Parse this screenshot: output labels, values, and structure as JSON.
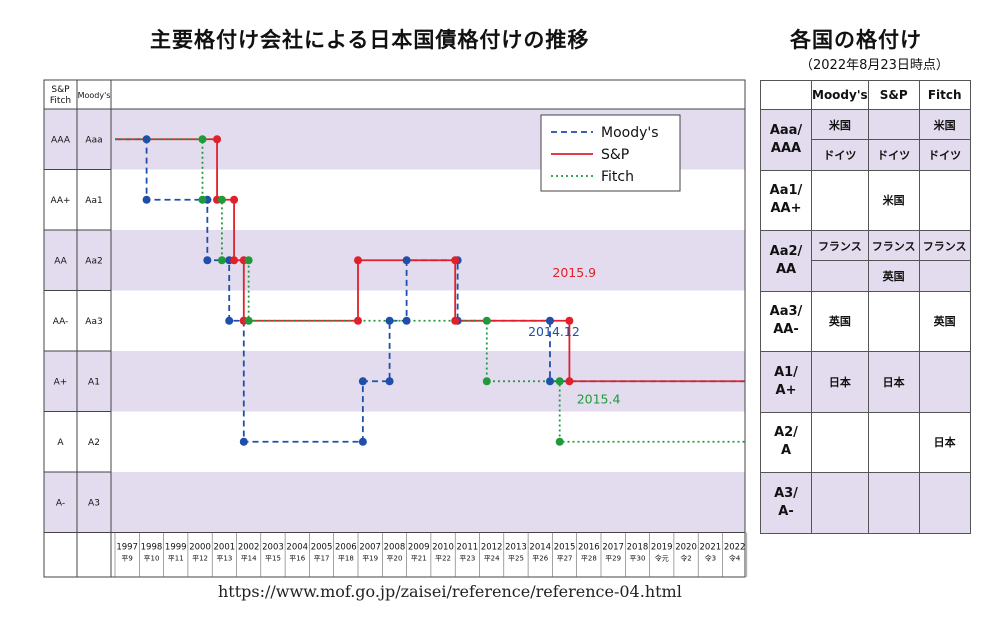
{
  "left_title": "主要格付け会社による日本国債格付けの推移",
  "right_title": "各国の格付け",
  "as_of": "（2022年8月23日時点）",
  "source_url": "https://www.mof.go.jp/zaisei/reference/reference-04.html",
  "colors": {
    "band": "#e2dcee",
    "moodys": "#1f4fa8",
    "sp": "#e0202a",
    "fitch": "#1f9a3a"
  },
  "chart_data": {
    "type": "line",
    "step": true,
    "col_headers": [
      "S&P\nFitch",
      "Moody's"
    ],
    "rating_rows": [
      {
        "sp_fitch": "AAA",
        "moodys": "Aaa"
      },
      {
        "sp_fitch": "AA+",
        "moodys": "Aa1"
      },
      {
        "sp_fitch": "AA",
        "moodys": "Aa2"
      },
      {
        "sp_fitch": "AA-",
        "moodys": "Aa3"
      },
      {
        "sp_fitch": "A+",
        "moodys": "A1"
      },
      {
        "sp_fitch": "A",
        "moodys": "A2"
      },
      {
        "sp_fitch": "A-",
        "moodys": "A3"
      }
    ],
    "years": [
      {
        "y": "1997",
        "e": "平9"
      },
      {
        "y": "1998",
        "e": "平10"
      },
      {
        "y": "1999",
        "e": "平11"
      },
      {
        "y": "2000",
        "e": "平12"
      },
      {
        "y": "2001",
        "e": "平13"
      },
      {
        "y": "2002",
        "e": "平14"
      },
      {
        "y": "2003",
        "e": "平15"
      },
      {
        "y": "2004",
        "e": "平16"
      },
      {
        "y": "2005",
        "e": "平17"
      },
      {
        "y": "2006",
        "e": "平18"
      },
      {
        "y": "2007",
        "e": "平19"
      },
      {
        "y": "2008",
        "e": "平20"
      },
      {
        "y": "2009",
        "e": "平21"
      },
      {
        "y": "2010",
        "e": "平22"
      },
      {
        "y": "2011",
        "e": "平23"
      },
      {
        "y": "2012",
        "e": "平24"
      },
      {
        "y": "2013",
        "e": "平25"
      },
      {
        "y": "2014",
        "e": "平26"
      },
      {
        "y": "2015",
        "e": "平27"
      },
      {
        "y": "2016",
        "e": "平28"
      },
      {
        "y": "2017",
        "e": "平29"
      },
      {
        "y": "2018",
        "e": "平30"
      },
      {
        "y": "2019",
        "e": "令元"
      },
      {
        "y": "2020",
        "e": "令2"
      },
      {
        "y": "2021",
        "e": "令3"
      },
      {
        "y": "2022",
        "e": "令4"
      }
    ],
    "x_range": [
      1997,
      2023
    ],
    "series": [
      {
        "name": "Moody's",
        "dash": "dashed",
        "color_key": "moodys",
        "points": [
          [
            1997.0,
            "Aaa"
          ],
          [
            1998.3,
            "Aaa"
          ],
          [
            1998.3,
            "Aa1"
          ],
          [
            2000.8,
            "Aa1"
          ],
          [
            2000.8,
            "Aa2"
          ],
          [
            2001.7,
            "Aa2"
          ],
          [
            2001.7,
            "Aa3"
          ],
          [
            2002.3,
            "Aa3"
          ],
          [
            2002.3,
            "A2"
          ],
          [
            2007.2,
            "A2"
          ],
          [
            2007.2,
            "A1"
          ],
          [
            2008.3,
            "A1"
          ],
          [
            2008.3,
            "Aa3"
          ],
          [
            2009.0,
            "Aa3"
          ],
          [
            2009.0,
            "Aa2"
          ],
          [
            2011.1,
            "Aa2"
          ],
          [
            2011.1,
            "Aa3"
          ],
          [
            2014.9,
            "Aa3"
          ],
          [
            2014.9,
            "A1"
          ],
          [
            2022.9,
            "A1"
          ]
        ],
        "dots": [
          [
            1998.3,
            "Aaa"
          ],
          [
            1998.3,
            "Aa1"
          ],
          [
            2000.8,
            "Aa1"
          ],
          [
            2000.8,
            "Aa2"
          ],
          [
            2001.7,
            "Aa2"
          ],
          [
            2001.7,
            "Aa3"
          ],
          [
            2002.3,
            "Aa3"
          ],
          [
            2002.3,
            "A2"
          ],
          [
            2007.2,
            "A2"
          ],
          [
            2007.2,
            "A1"
          ],
          [
            2008.3,
            "A1"
          ],
          [
            2008.3,
            "Aa3"
          ],
          [
            2009.0,
            "Aa3"
          ],
          [
            2009.0,
            "Aa2"
          ],
          [
            2011.1,
            "Aa2"
          ],
          [
            2011.1,
            "Aa3"
          ],
          [
            2014.9,
            "Aa3"
          ],
          [
            2014.9,
            "A1"
          ]
        ]
      },
      {
        "name": "S&P",
        "dash": "solid",
        "color_key": "sp",
        "points": [
          [
            1997.0,
            "AAA"
          ],
          [
            2001.2,
            "AAA"
          ],
          [
            2001.2,
            "AA+"
          ],
          [
            2001.9,
            "AA+"
          ],
          [
            2001.9,
            "AA"
          ],
          [
            2002.3,
            "AA"
          ],
          [
            2002.3,
            "AA-"
          ],
          [
            2007.0,
            "AA-"
          ],
          [
            2007.0,
            "AA"
          ],
          [
            2011.0,
            "AA"
          ],
          [
            2011.0,
            "AA-"
          ],
          [
            2015.7,
            "AA-"
          ],
          [
            2015.7,
            "A+"
          ],
          [
            2022.9,
            "A+"
          ]
        ],
        "dots": [
          [
            2001.2,
            "AAA"
          ],
          [
            2001.2,
            "AA+"
          ],
          [
            2001.9,
            "AA+"
          ],
          [
            2001.9,
            "AA"
          ],
          [
            2002.3,
            "AA"
          ],
          [
            2002.3,
            "AA-"
          ],
          [
            2007.0,
            "AA-"
          ],
          [
            2007.0,
            "AA"
          ],
          [
            2011.0,
            "AA"
          ],
          [
            2011.0,
            "AA-"
          ],
          [
            2015.7,
            "AA-"
          ],
          [
            2015.7,
            "A+"
          ]
        ]
      },
      {
        "name": "Fitch",
        "dash": "dotted",
        "color_key": "fitch",
        "points": [
          [
            1997.0,
            "AAA"
          ],
          [
            2000.6,
            "AAA"
          ],
          [
            2000.6,
            "AA+"
          ],
          [
            2001.4,
            "AA+"
          ],
          [
            2001.4,
            "AA"
          ],
          [
            2002.5,
            "AA"
          ],
          [
            2002.5,
            "AA-"
          ],
          [
            2012.3,
            "AA-"
          ],
          [
            2012.3,
            "A+"
          ],
          [
            2015.3,
            "A+"
          ],
          [
            2015.3,
            "A"
          ],
          [
            2022.9,
            "A"
          ]
        ],
        "dots": [
          [
            2000.6,
            "AAA"
          ],
          [
            2000.6,
            "AA+"
          ],
          [
            2001.4,
            "AA+"
          ],
          [
            2001.4,
            "AA"
          ],
          [
            2002.5,
            "AA"
          ],
          [
            2002.5,
            "AA-"
          ],
          [
            2012.3,
            "AA-"
          ],
          [
            2012.3,
            "A+"
          ],
          [
            2015.3,
            "A+"
          ],
          [
            2015.3,
            "A"
          ]
        ]
      }
    ],
    "annotations": [
      {
        "text": "2015.9",
        "x": 2015.0,
        "row": 2.78,
        "color_key": "sp"
      },
      {
        "text": "2014.12",
        "x": 2014.0,
        "row": 3.75,
        "color_key": "moodys"
      },
      {
        "text": "2015.4",
        "x": 2016.0,
        "row": 4.87,
        "color_key": "fitch"
      }
    ],
    "legend": {
      "position": "top-right",
      "labels": [
        "Moody's",
        "S&P",
        "Fitch"
      ]
    }
  },
  "country_table": {
    "headers": [
      "",
      "Moody's",
      "S&P",
      "Fitch"
    ],
    "groups": [
      {
        "rating": "Aaa/\nAAA",
        "band": true,
        "rows": [
          [
            "米国",
            "",
            "米国"
          ],
          [
            "ドイツ",
            "ドイツ",
            "ドイツ"
          ]
        ]
      },
      {
        "rating": "Aa1/\nAA+",
        "band": false,
        "rows": [
          [
            "",
            "米国",
            ""
          ]
        ]
      },
      {
        "rating": "Aa2/\nAA",
        "band": true,
        "rows": [
          [
            "フランス",
            "フランス",
            "フランス"
          ],
          [
            "",
            "英国",
            ""
          ]
        ]
      },
      {
        "rating": "Aa3/\nAA-",
        "band": false,
        "rows": [
          [
            "英国",
            "",
            "英国"
          ]
        ]
      },
      {
        "rating": "A1/\nA+",
        "band": true,
        "rows": [
          [
            "日本",
            "日本",
            ""
          ]
        ]
      },
      {
        "rating": "A2/\nA",
        "band": false,
        "rows": [
          [
            "",
            "",
            "日本"
          ]
        ]
      },
      {
        "rating": "A3/\nA-",
        "band": true,
        "rows": [
          [
            "",
            "",
            ""
          ]
        ]
      }
    ]
  }
}
